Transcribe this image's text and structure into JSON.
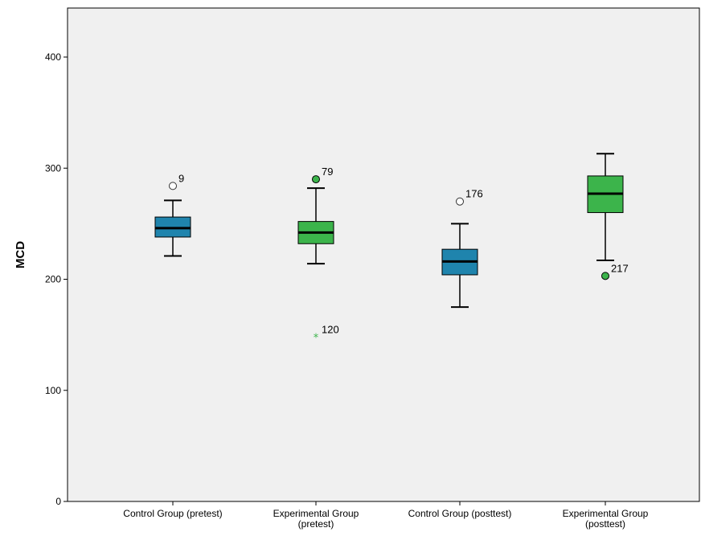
{
  "chart_data": {
    "type": "boxplot",
    "title": "",
    "xlabel": "",
    "ylabel": "MCD",
    "ylim": [
      0,
      440
    ],
    "yticks": [
      0,
      100,
      200,
      300,
      400
    ],
    "grid": false,
    "legend": "none",
    "colors": {
      "control": "#1f84ad",
      "experimental": "#3cb44b",
      "plot_bg": "#f0f0f0"
    },
    "categories": [
      {
        "lines": [
          "Control Group (pretest)"
        ]
      },
      {
        "lines": [
          "Experimental Group",
          "(pretest)"
        ]
      },
      {
        "lines": [
          "Control Group (posttest)"
        ]
      },
      {
        "lines": [
          "Experimental Group",
          "(posttest)"
        ]
      }
    ],
    "boxes": [
      {
        "color": "control",
        "whisker_low": 221,
        "q1": 238,
        "median": 246,
        "q3": 256,
        "whisker_high": 271,
        "outliers": [
          {
            "value": 284,
            "label": "9",
            "marker": "circle-open"
          }
        ]
      },
      {
        "color": "experimental",
        "whisker_low": 214,
        "q1": 232,
        "median": 242,
        "q3": 252,
        "whisker_high": 282,
        "outliers": [
          {
            "value": 290,
            "label": "79",
            "marker": "circle-filled"
          },
          {
            "value": 148,
            "label": "120",
            "marker": "star"
          }
        ]
      },
      {
        "color": "control",
        "whisker_low": 175,
        "q1": 204,
        "median": 216,
        "q3": 227,
        "whisker_high": 250,
        "outliers": [
          {
            "value": 270,
            "label": "176",
            "marker": "circle-open"
          }
        ]
      },
      {
        "color": "experimental",
        "whisker_low": 217,
        "q1": 260,
        "median": 277,
        "q3": 293,
        "whisker_high": 313,
        "outliers": [
          {
            "value": 203,
            "label": "217",
            "marker": "circle-filled"
          }
        ]
      }
    ]
  }
}
